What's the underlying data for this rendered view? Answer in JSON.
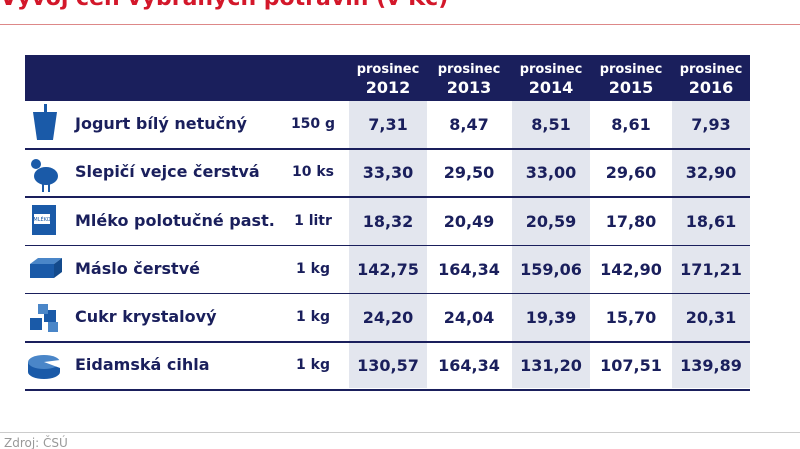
{
  "title": "Vývoj cen vybraných potravin (v Kč)",
  "columns": [
    {
      "line1": "prosinec",
      "line2": "2012"
    },
    {
      "line1": "prosinec",
      "line2": "2013"
    },
    {
      "line1": "prosinec",
      "line2": "2014"
    },
    {
      "line1": "prosinec",
      "line2": "2015"
    },
    {
      "line1": "prosinec",
      "line2": "2016"
    }
  ],
  "rows": [
    {
      "name": "Jogurt bílý netučný",
      "unit": "150 g",
      "values": [
        "7,31",
        "8,47",
        "8,51",
        "8,61",
        "7,93"
      ]
    },
    {
      "name": "Slepičí vejce čerstvá",
      "unit": "10 ks",
      "values": [
        "33,30",
        "29,50",
        "33,00",
        "29,60",
        "32,90"
      ]
    },
    {
      "name": "Mléko polotučné past.",
      "unit": "1 litr",
      "values": [
        "18,32",
        "20,49",
        "20,59",
        "17,80",
        "18,61"
      ]
    },
    {
      "name": "Máslo čerstvé",
      "unit": "1 kg",
      "values": [
        "142,75",
        "164,34",
        "159,06",
        "142,90",
        "171,21"
      ]
    },
    {
      "name": "Cukr krystalový",
      "unit": "1 kg",
      "values": [
        "24,20",
        "24,04",
        "19,39",
        "15,70",
        "20,31"
      ]
    },
    {
      "name": "Eidamská cihla",
      "unit": "1 kg",
      "values": [
        "130,57",
        "164,34",
        "131,20",
        "107,51",
        "139,89"
      ]
    }
  ],
  "icon_label": "MLÉKO",
  "source": "Zdroj: ČSÚ"
}
